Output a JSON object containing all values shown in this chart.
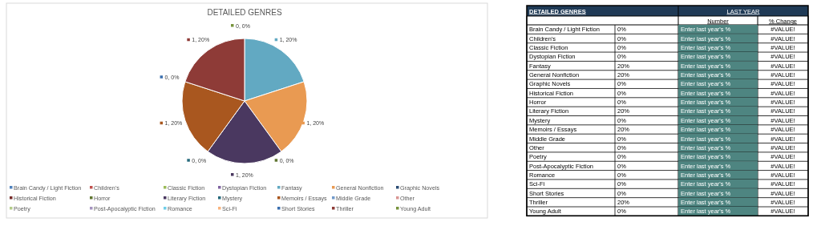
{
  "chart_data": [
    {
      "type": "pie",
      "title": "DETAILED GENRES",
      "categories": [
        "Brain Candy / Light Fiction",
        "Children's",
        "Classic Fiction",
        "Dystopian Fiction",
        "Fantasy",
        "General Nonfiction",
        "Graphic Novels",
        "Historical Fiction",
        "Horror",
        "Literary Fiction",
        "Mystery",
        "Memoirs / Essays",
        "Middle Grade",
        "Other",
        "Poetry",
        "Post-Apocalyptic Fiction",
        "Romance",
        "Sci-Fi",
        "Short Stories",
        "Thriller",
        "Young Adult"
      ],
      "values": [
        0,
        0,
        0,
        0,
        1,
        1,
        0,
        0,
        0,
        1,
        0,
        1,
        0,
        0,
        0,
        0,
        0,
        0,
        0,
        1,
        0
      ],
      "colors": [
        "#4f81bd",
        "#c0504d",
        "#9bbb59",
        "#8064a2",
        "#62a9c2",
        "#e99a52",
        "#2c4d75",
        "#772c2a",
        "#5f7530",
        "#4a3860",
        "#276a7c",
        "#a9571f",
        "#729aca",
        "#d99694",
        "#b3cc8a",
        "#a593bf",
        "#6fcee8",
        "#f9b47e",
        "#3a6fae",
        "#8e3b37",
        "#77933c"
      ],
      "value_labels": [
        null,
        null,
        null,
        null,
        "1, 20%",
        "1, 20%",
        null,
        null,
        "0, 0%",
        "1, 20%",
        "0, 0%",
        "1, 20%",
        null,
        null,
        null,
        null,
        null,
        null,
        "0, 0%",
        "1, 20%",
        "0, 0%"
      ],
      "legend": "bottom"
    },
    {
      "type": "other",
      "title": "DETAILED GENRES",
      "annotations": [
        "LAST YEAR",
        "Number",
        "% Change",
        "Brain Candy / Light Fiction",
        "0%",
        "Enter last year's %",
        "#VALUE!",
        "Children's",
        "0%",
        "Enter last year's %",
        "#VALUE!",
        "Classic Fiction",
        "0%",
        "Enter last year's %",
        "#VALUE!",
        "Dystopian Fiction",
        "0%",
        "Enter last year's %",
        "#VALUE!",
        "Fantasy",
        "20%",
        "Enter last year's %",
        "#VALUE!",
        "General Nonfiction",
        "20%",
        "Enter last year's %",
        "#VALUE!",
        "Graphic Novels",
        "0%",
        "Enter last year's %",
        "#VALUE!",
        "Historical Fiction",
        "0%",
        "Enter last year's %",
        "#VALUE!",
        "Horror",
        "0%",
        "Enter last year's %",
        "#VALUE!",
        "Literary Fiction",
        "20%",
        "Enter last year's %",
        "#VALUE!",
        "Mystery",
        "0%",
        "Enter last year's %",
        "#VALUE!",
        "Memoirs / Essays",
        "20%",
        "Enter last year's %",
        "#VALUE!",
        "Middle Grade",
        "0%",
        "Enter last year's %",
        "#VALUE!",
        "Other",
        "0%",
        "Enter last year's %",
        "#VALUE!",
        "Poetry",
        "0%",
        "Enter last year's %",
        "#VALUE!",
        "Post-Apocalyptic Fiction",
        "0%",
        "Enter last year's %",
        "#VALUE!",
        "Romance",
        "0%",
        "Enter last year's %",
        "#VALUE!",
        "Sci-Fi",
        "0%",
        "Enter last year's %",
        "#VALUE!",
        "Short Stories",
        "0%",
        "Enter last year's %",
        "#VALUE!",
        "Thriller",
        "20%",
        "Enter last year's %",
        "#VALUE!",
        "Young Adult",
        "0%",
        "Enter last year's %",
        "#VALUE!"
      ]
    }
  ]
}
